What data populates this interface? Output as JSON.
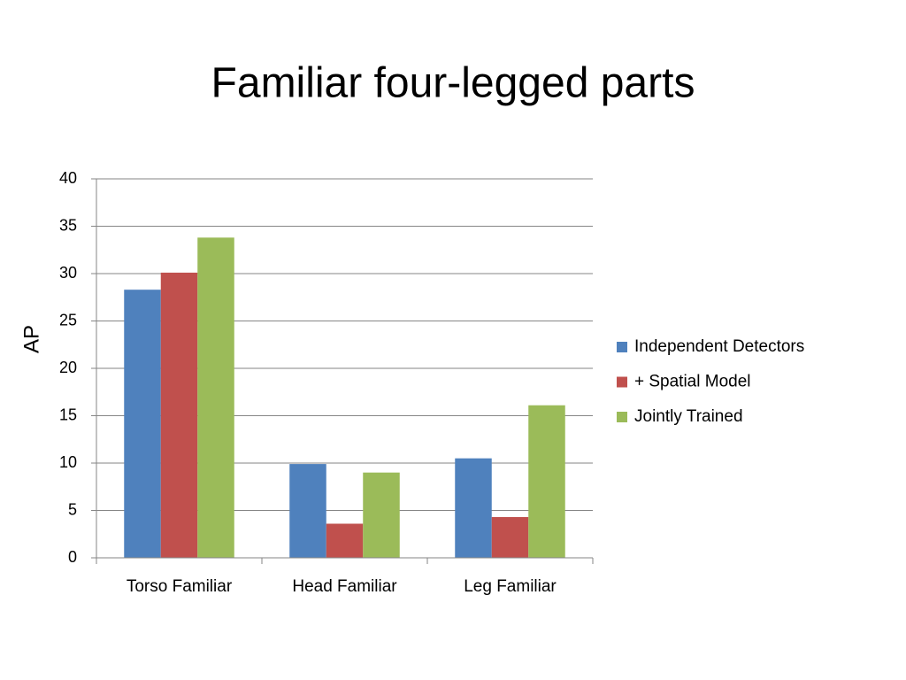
{
  "chart_data": {
    "type": "bar",
    "title": "Familiar four-legged parts",
    "y_label": "AP",
    "categories": [
      "Torso Familiar",
      "Head Familiar",
      "Leg Familiar"
    ],
    "series": [
      {
        "name": "Independent Detectors",
        "color": "#4f81bd",
        "values": [
          28.3,
          9.9,
          10.5
        ]
      },
      {
        "name": "+ Spatial Model",
        "color": "#c0504d",
        "values": [
          30.1,
          3.6,
          4.3
        ]
      },
      {
        "name": "Jointly Trained",
        "color": "#9bbb59",
        "values": [
          33.8,
          9.0,
          16.1
        ]
      }
    ],
    "ylim": [
      0,
      40
    ],
    "yticks": [
      0,
      5,
      10,
      15,
      20,
      25,
      30,
      35,
      40
    ],
    "grid": true,
    "legend": "right"
  }
}
